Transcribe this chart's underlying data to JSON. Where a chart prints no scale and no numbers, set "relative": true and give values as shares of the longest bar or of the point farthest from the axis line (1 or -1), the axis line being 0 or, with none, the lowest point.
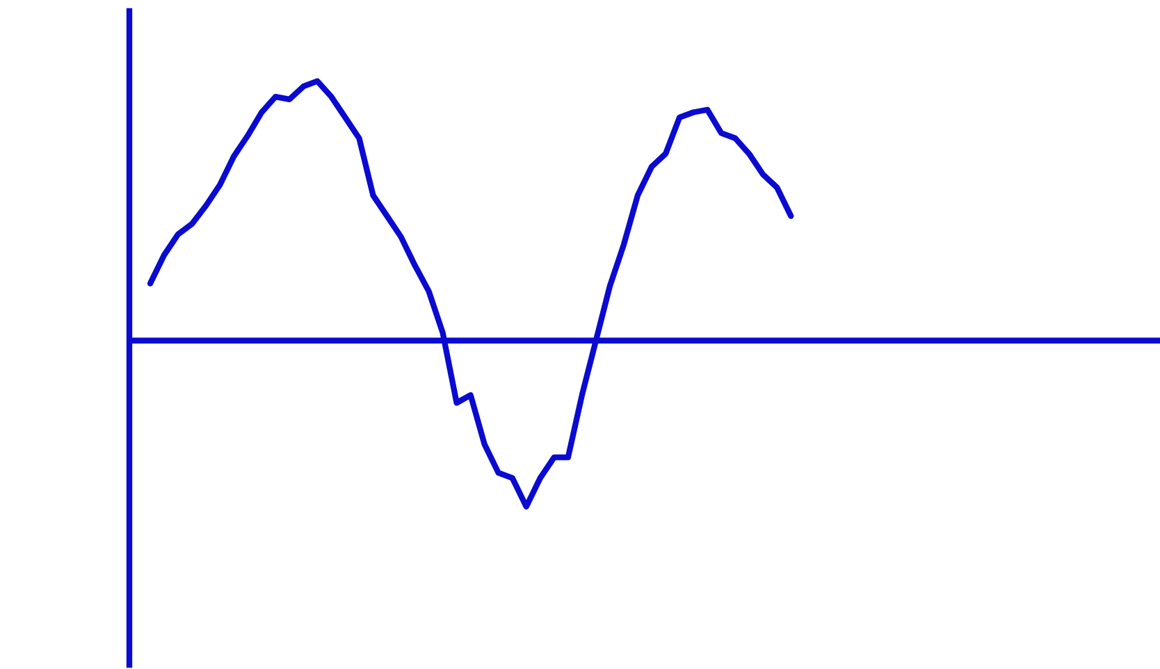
{
  "chart_data": {
    "type": "line",
    "relative": true,
    "color": "#0a0ad0",
    "ref_lines": [
      {
        "axis": "y",
        "value": 0
      }
    ],
    "grid": false,
    "legend": false,
    "categories": [
      null,
      null,
      null,
      null,
      null,
      null,
      null,
      null,
      null,
      null,
      null,
      null,
      null,
      null,
      null,
      null,
      null,
      null,
      null,
      null,
      null,
      null,
      null,
      null,
      null,
      null,
      null,
      null,
      null,
      null,
      null,
      null,
      null,
      null,
      null,
      null,
      null,
      null,
      null,
      null,
      null,
      null,
      null,
      null,
      null,
      null,
      null,
      null,
      null,
      null,
      null,
      null,
      null,
      null,
      null,
      null,
      null,
      null,
      null,
      null,
      null,
      null,
      null,
      null,
      null,
      null,
      null,
      null,
      null,
      null,
      null,
      null,
      null,
      null
    ],
    "series": [
      {
        "color": "#0a0ad0",
        "values": [
          null,
          0.22,
          0.33,
          0.41,
          0.45,
          0.52,
          0.6,
          0.71,
          0.79,
          0.88,
          0.94,
          0.93,
          0.98,
          1.0,
          0.94,
          0.86,
          0.78,
          0.56,
          0.48,
          0.4,
          0.29,
          0.19,
          0.03,
          -0.24,
          -0.21,
          -0.4,
          -0.51,
          -0.53,
          -0.64,
          -0.53,
          -0.45,
          -0.45,
          -0.21,
          0,
          0.21,
          0.37,
          0.56,
          0.67,
          0.72,
          0.86,
          0.88,
          0.89,
          0.8,
          0.78,
          0.72,
          0.64,
          0.59,
          0.48,
          null,
          null,
          null,
          null,
          null,
          null,
          null,
          null,
          null,
          null,
          null,
          null,
          null,
          null,
          null,
          null,
          null,
          null,
          null,
          null,
          null,
          null,
          null,
          null,
          null,
          null
        ]
      }
    ]
  }
}
